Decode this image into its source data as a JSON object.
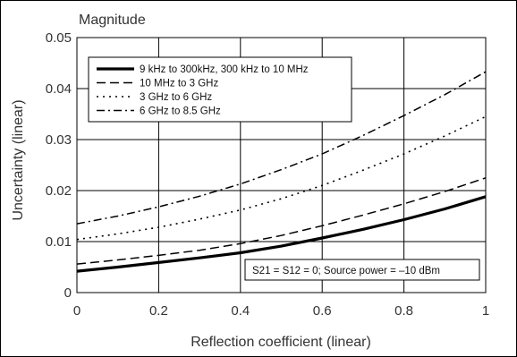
{
  "chart_data": {
    "type": "line",
    "title": "Magnitude",
    "xlabel": "Reflection coefficient (linear)",
    "ylabel": "Uncertainty (linear)",
    "xlim": [
      0,
      1
    ],
    "ylim": [
      0,
      0.05
    ],
    "xticks": [
      "0",
      "0.2",
      "0.4",
      "0.6",
      "0.8",
      "1"
    ],
    "yticks": [
      "0",
      "0.01",
      "0.02",
      "0.03",
      "0.04",
      "0.05"
    ],
    "grid": true,
    "legend_position": "top-left",
    "annotation": "S21 = S12 = 0; Source power = –10 dBm",
    "x": [
      0,
      0.1,
      0.2,
      0.3,
      0.4,
      0.5,
      0.6,
      0.7,
      0.8,
      0.9,
      1.0
    ],
    "series": [
      {
        "name": "9 kHz to 300kHz, 300 kHz to 10 MHz",
        "style": "solid-thick",
        "values": [
          0.0042,
          0.005,
          0.0059,
          0.0068,
          0.0078,
          0.0091,
          0.0107,
          0.0124,
          0.0143,
          0.0164,
          0.0188
        ]
      },
      {
        "name": "10 MHz to 3 GHz",
        "style": "dashed",
        "values": [
          0.0056,
          0.0064,
          0.0073,
          0.0083,
          0.0096,
          0.0112,
          0.0131,
          0.0152,
          0.0174,
          0.0198,
          0.0225
        ]
      },
      {
        "name": "3 GHz to 6 GHz",
        "style": "dotted",
        "values": [
          0.0104,
          0.0115,
          0.0128,
          0.0144,
          0.0162,
          0.0184,
          0.021,
          0.024,
          0.0272,
          0.0307,
          0.0345
        ]
      },
      {
        "name": "6 GHz to 8.5 GHz",
        "style": "dash-dot",
        "values": [
          0.0135,
          0.015,
          0.0168,
          0.0189,
          0.0213,
          0.0241,
          0.0272,
          0.0308,
          0.0347,
          0.0388,
          0.0433
        ]
      }
    ]
  }
}
